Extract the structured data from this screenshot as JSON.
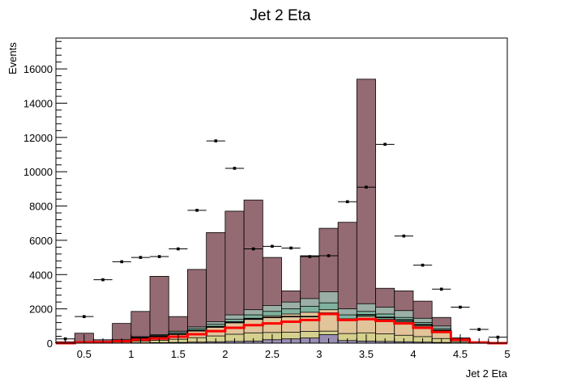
{
  "chart_data": {
    "type": "bar",
    "title": "Jet 2 Eta",
    "xlabel": "Jet 2 Eta",
    "ylabel": "Events",
    "xlim": [
      0.2,
      5.0
    ],
    "ylim": [
      0,
      17800
    ],
    "bin_width": 0.2,
    "x_ticks": [
      "0.5",
      "1",
      "1.5",
      "2",
      "2.5",
      "3",
      "3.5",
      "4",
      "4.5",
      "5"
    ],
    "x_tick_values": [
      0.5,
      1,
      1.5,
      2,
      2.5,
      3,
      3.5,
      4,
      4.5,
      5
    ],
    "y_ticks": [
      "0",
      "2000",
      "4000",
      "6000",
      "8000",
      "10000",
      "12000",
      "14000",
      "16000"
    ],
    "y_tick_values": [
      0,
      2000,
      4000,
      6000,
      8000,
      10000,
      12000,
      14000,
      16000
    ],
    "bin_low_edges": [
      0.2,
      0.4,
      0.6,
      0.8,
      1.0,
      1.2,
      1.4,
      1.6,
      1.8,
      2.0,
      2.2,
      2.4,
      2.6,
      2.8,
      3.0,
      3.2,
      3.4,
      3.6,
      3.8,
      4.0,
      4.2,
      4.4,
      4.6,
      4.8
    ],
    "stack_totals": [
      {
        "color": "#956b73",
        "values": [
          80,
          580,
          200,
          1150,
          1850,
          3900,
          1550,
          4300,
          6450,
          7700,
          8350,
          5000,
          3050,
          5100,
          6700,
          7050,
          15400,
          3200,
          3050,
          2450,
          1500,
          300,
          60,
          0
        ]
      },
      {
        "color": "#9bafa6",
        "values": [
          30,
          100,
          100,
          200,
          380,
          500,
          700,
          950,
          1250,
          1650,
          1950,
          2200,
          2400,
          2600,
          3000,
          2000,
          2300,
          2100,
          1900,
          1450,
          1000,
          300,
          60,
          0
        ]
      },
      {
        "color": "#7fb39f",
        "values": [
          25,
          80,
          90,
          180,
          340,
          450,
          620,
          850,
          1100,
          1400,
          1650,
          1850,
          2000,
          2150,
          2350,
          1650,
          1850,
          1700,
          1500,
          1200,
          850,
          260,
          50,
          0
        ]
      },
      {
        "color": "#e1c49a",
        "values": [
          20,
          70,
          80,
          160,
          300,
          400,
          550,
          760,
          980,
          1250,
          1450,
          1600,
          1700,
          1800,
          1950,
          1400,
          1550,
          1400,
          1250,
          1000,
          700,
          230,
          45,
          0
        ]
      },
      {
        "color": "#d5d08e",
        "values": [
          10,
          30,
          40,
          70,
          120,
          160,
          230,
          320,
          420,
          520,
          600,
          620,
          640,
          680,
          700,
          560,
          600,
          540,
          460,
          380,
          270,
          90,
          20,
          0
        ]
      },
      {
        "color": "#9a8eb4",
        "values": [
          0,
          5,
          5,
          10,
          20,
          30,
          40,
          60,
          80,
          100,
          120,
          200,
          250,
          300,
          500,
          150,
          120,
          100,
          80,
          60,
          40,
          15,
          5,
          0
        ]
      }
    ],
    "red_line": {
      "color": "#ff0000",
      "values": [
        0,
        50,
        60,
        110,
        200,
        270,
        380,
        520,
        700,
        900,
        1050,
        1150,
        1250,
        1350,
        1700,
        1350,
        1400,
        1300,
        1150,
        900,
        650,
        200,
        40,
        0
      ]
    },
    "black_line": {
      "color": "#000000",
      "values": [
        10,
        60,
        70,
        150,
        290,
        380,
        520,
        720,
        940,
        1200,
        1400,
        1500,
        1550,
        1550,
        1750,
        1400,
        1650,
        1500,
        1350,
        1080,
        750,
        260,
        50,
        0
      ]
    },
    "data_points": [
      {
        "x": 0.3,
        "y": 250
      },
      {
        "x": 0.5,
        "y": 1550
      },
      {
        "x": 0.7,
        "y": 3700
      },
      {
        "x": 0.9,
        "y": 4750
      },
      {
        "x": 1.1,
        "y": 5000
      },
      {
        "x": 1.3,
        "y": 5050
      },
      {
        "x": 1.5,
        "y": 5500
      },
      {
        "x": 1.7,
        "y": 7750
      },
      {
        "x": 1.9,
        "y": 11800
      },
      {
        "x": 2.1,
        "y": 10200
      },
      {
        "x": 2.3,
        "y": 5500
      },
      {
        "x": 2.5,
        "y": 5650
      },
      {
        "x": 2.7,
        "y": 5550
      },
      {
        "x": 2.9,
        "y": 5050
      },
      {
        "x": 3.1,
        "y": 5100
      },
      {
        "x": 3.3,
        "y": 8250
      },
      {
        "x": 3.5,
        "y": 9100
      },
      {
        "x": 3.7,
        "y": 11600
      },
      {
        "x": 3.9,
        "y": 6250
      },
      {
        "x": 4.1,
        "y": 4550
      },
      {
        "x": 4.3,
        "y": 3150
      },
      {
        "x": 4.5,
        "y": 2100
      },
      {
        "x": 4.7,
        "y": 800
      },
      {
        "x": 4.9,
        "y": 350
      }
    ],
    "grid": false,
    "legend": "none"
  }
}
